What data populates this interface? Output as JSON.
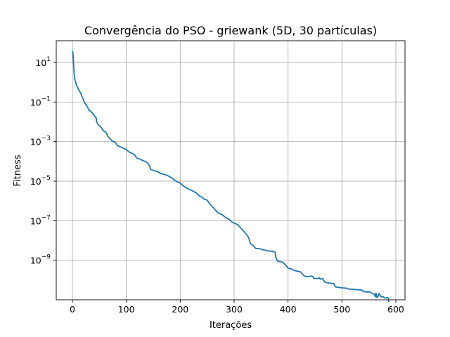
{
  "chart_data": {
    "type": "line",
    "title": "Convergência do PSO - griewank (5D, 30 partículas)",
    "xlabel": "Iterações",
    "ylabel": "Fitness",
    "yscale": "log",
    "grid": true,
    "xlim": [
      -30,
      617
    ],
    "ylim": [
      1e-11,
      126.0
    ],
    "xticks": [
      0,
      100,
      200,
      300,
      400,
      500,
      600
    ],
    "xtick_labels": [
      "0",
      "100",
      "200",
      "300",
      "400",
      "500",
      "600"
    ],
    "yticks": [
      10,
      0.1,
      0.001,
      1e-05,
      1e-07,
      1e-09
    ],
    "ytick_labels": [
      {
        "base": "10",
        "exp": "1"
      },
      {
        "base": "10",
        "exp": "−1"
      },
      {
        "base": "10",
        "exp": "−3"
      },
      {
        "base": "10",
        "exp": "−5"
      },
      {
        "base": "10",
        "exp": "−7"
      },
      {
        "base": "10",
        "exp": "−9"
      }
    ],
    "series_color": "#1f77b4",
    "series": [
      {
        "points": [
          [
            0,
            38
          ],
          [
            1,
            30
          ],
          [
            2,
            10
          ],
          [
            3,
            3
          ],
          [
            4,
            1.6
          ],
          [
            5,
            1.2
          ],
          [
            7,
            0.8
          ],
          [
            9,
            0.6
          ],
          [
            11,
            0.45
          ],
          [
            13,
            0.35
          ],
          [
            15,
            0.3
          ],
          [
            17,
            0.22
          ],
          [
            18,
            0.18
          ],
          [
            20,
            0.14
          ],
          [
            22,
            0.1
          ],
          [
            24,
            0.08
          ],
          [
            27,
            0.06
          ],
          [
            29,
            0.05
          ],
          [
            30,
            0.04
          ],
          [
            33,
            0.035
          ],
          [
            36,
            0.03
          ],
          [
            38,
            0.025
          ],
          [
            40,
            0.022
          ],
          [
            42,
            0.018
          ],
          [
            44,
            0.016
          ],
          [
            45,
            0.01
          ],
          [
            48,
            0.007
          ],
          [
            51,
            0.006
          ],
          [
            54,
            0.005
          ],
          [
            57,
            0.0035
          ],
          [
            62,
            0.003
          ],
          [
            66,
            0.0018
          ],
          [
            70,
            0.0014
          ],
          [
            75,
            0.001
          ],
          [
            80,
            0.0009
          ],
          [
            83,
            0.00065
          ],
          [
            88,
            0.00055
          ],
          [
            95,
            0.00045
          ],
          [
            100,
            0.0004
          ],
          [
            105,
            0.0003
          ],
          [
            110,
            0.00026
          ],
          [
            115,
            0.00022
          ],
          [
            120,
            0.00014
          ],
          [
            126,
            0.00013
          ],
          [
            130,
            0.00011
          ],
          [
            135,
            0.0001
          ],
          [
            140,
            8e-05
          ],
          [
            143,
            6e-05
          ],
          [
            145,
            4e-05
          ],
          [
            150,
            3.5e-05
          ],
          [
            158,
            3e-05
          ],
          [
            163,
            2.5e-05
          ],
          [
            170,
            2.2e-05
          ],
          [
            175,
            2e-05
          ],
          [
            180,
            1.7e-05
          ],
          [
            185,
            1.4e-05
          ],
          [
            190,
            1.1e-05
          ],
          [
            195,
            9e-06
          ],
          [
            200,
            8e-06
          ],
          [
            205,
            6e-06
          ],
          [
            210,
            4.8e-06
          ],
          [
            215,
            4e-06
          ],
          [
            220,
            3.5e-06
          ],
          [
            225,
            3e-06
          ],
          [
            230,
            2.5e-06
          ],
          [
            235,
            1.8e-06
          ],
          [
            240,
            1.6e-06
          ],
          [
            245,
            1.2e-06
          ],
          [
            250,
            1.1e-06
          ],
          [
            255,
            7e-07
          ],
          [
            260,
            5e-07
          ],
          [
            265,
            3.5e-07
          ],
          [
            270,
            2.5e-07
          ],
          [
            275,
            2.2e-07
          ],
          [
            280,
            1.8e-07
          ],
          [
            285,
            1.4e-07
          ],
          [
            290,
            1.2e-07
          ],
          [
            295,
            9e-08
          ],
          [
            300,
            7.5e-08
          ],
          [
            306,
            6.5e-08
          ],
          [
            310,
            5e-08
          ],
          [
            315,
            3.5e-08
          ],
          [
            320,
            2.5e-08
          ],
          [
            325,
            1.7e-08
          ],
          [
            328,
            1.2e-08
          ],
          [
            330,
            7e-09
          ],
          [
            335,
            5.5e-09
          ],
          [
            340,
            4e-09
          ],
          [
            348,
            3.8e-09
          ],
          [
            352,
            3.5e-09
          ],
          [
            358,
            3.2e-09
          ],
          [
            362,
            3e-09
          ],
          [
            372,
            2.8e-09
          ],
          [
            376,
            2.5e-09
          ],
          [
            378,
            1.2e-09
          ],
          [
            381,
            9e-10
          ],
          [
            385,
            8.5e-10
          ],
          [
            390,
            8e-10
          ],
          [
            395,
            6e-10
          ],
          [
            400,
            4e-10
          ],
          [
            408,
            3.5e-10
          ],
          [
            412,
            3e-10
          ],
          [
            418,
            2.8e-10
          ],
          [
            424,
            2.5e-10
          ],
          [
            428,
            1.8e-10
          ],
          [
            433,
            1.5e-10
          ],
          [
            438,
            1.5e-10
          ],
          [
            443,
            1.6e-10
          ],
          [
            446,
            1.5e-10
          ],
          [
            448,
            1.2e-10
          ],
          [
            455,
            1.2e-10
          ],
          [
            458,
            1.3e-10
          ],
          [
            460,
            1.1e-10
          ],
          [
            464,
            1.2e-10
          ],
          [
            468,
            8e-11
          ],
          [
            475,
            7e-11
          ],
          [
            480,
            6.8e-11
          ],
          [
            485,
            6.6e-11
          ],
          [
            488,
            4.5e-11
          ],
          [
            495,
            4.2e-11
          ],
          [
            500,
            4e-11
          ],
          [
            508,
            3.9e-11
          ],
          [
            512,
            3.5e-11
          ],
          [
            520,
            3.4e-11
          ],
          [
            530,
            3.2e-11
          ],
          [
            537,
            3.1e-11
          ],
          [
            540,
            2.6e-11
          ],
          [
            545,
            2.5e-11
          ],
          [
            552,
            2.5e-11
          ],
          [
            555,
            2.2e-11
          ],
          [
            560,
            1.9e-11
          ],
          [
            562,
            1.4e-11
          ],
          [
            563,
            2.2e-11
          ],
          [
            565,
            1.3e-11
          ],
          [
            567,
            1.5e-11
          ],
          [
            569,
            2.1e-11
          ],
          [
            571,
            1.6e-11
          ],
          [
            574,
            1.4e-11
          ],
          [
            577,
            1.4e-11
          ],
          [
            580,
            1.2e-11
          ],
          [
            584,
            1.3e-11
          ],
          [
            586,
            1.2e-11
          ],
          [
            587,
            7.8e-12
          ]
        ]
      }
    ]
  }
}
